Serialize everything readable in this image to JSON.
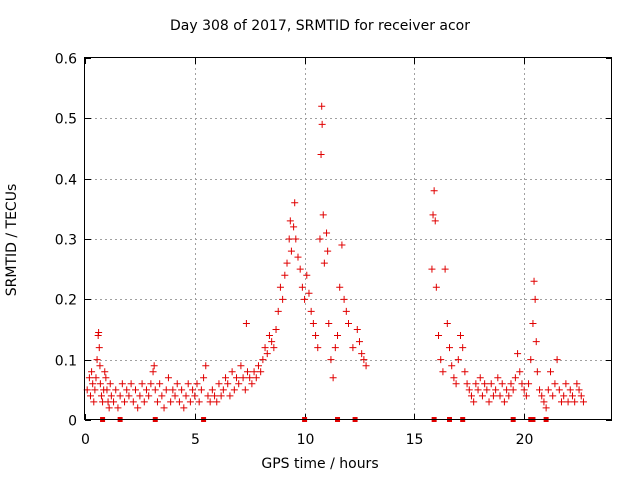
{
  "chart_data": {
    "type": "scatter",
    "title": "Day 308 of 2017, SRMTID for receiver acor",
    "xlabel": "GPS time / hours",
    "ylabel": "SRMTID / TECUs",
    "xlim": [
      0,
      24
    ],
    "ylim": [
      0,
      0.6
    ],
    "xticks": [
      0,
      5,
      10,
      15,
      20
    ],
    "yticks": [
      0,
      0.1,
      0.2,
      0.3,
      0.4,
      0.5,
      0.6
    ],
    "xtick_labels": [
      "0",
      "5",
      "10",
      "15",
      "20"
    ],
    "ytick_labels": [
      "0",
      "0.1",
      "0.2",
      "0.3",
      "0.4",
      "0.5",
      "0.6"
    ],
    "grid": true,
    "marker": "+",
    "color": "#e00000",
    "gap_markers_x": [
      0.8,
      1.6,
      3.2,
      5.4,
      10.0,
      11.5,
      12.3,
      15.9,
      16.6,
      17.2,
      19.5,
      20.3,
      20.4,
      21.0
    ],
    "series": [
      {
        "name": "SRMTID",
        "points": [
          [
            0.1,
            0.05
          ],
          [
            0.2,
            0.07
          ],
          [
            0.25,
            0.04
          ],
          [
            0.3,
            0.08
          ],
          [
            0.35,
            0.06
          ],
          [
            0.4,
            0.03
          ],
          [
            0.45,
            0.05
          ],
          [
            0.5,
            0.07
          ],
          [
            0.55,
            0.1
          ],
          [
            0.6,
            0.14
          ],
          [
            0.62,
            0.145
          ],
          [
            0.65,
            0.12
          ],
          [
            0.68,
            0.09
          ],
          [
            0.7,
            0.06
          ],
          [
            0.75,
            0.04
          ],
          [
            0.8,
            0.03
          ],
          [
            0.85,
            0.05
          ],
          [
            0.9,
            0.08
          ],
          [
            0.95,
            0.07
          ],
          [
            1.0,
            0.05
          ],
          [
            1.05,
            0.03
          ],
          [
            1.1,
            0.02
          ],
          [
            1.15,
            0.06
          ],
          [
            1.2,
            0.04
          ],
          [
            1.3,
            0.03
          ],
          [
            1.4,
            0.05
          ],
          [
            1.5,
            0.02
          ],
          [
            1.6,
            0.04
          ],
          [
            1.7,
            0.06
          ],
          [
            1.8,
            0.03
          ],
          [
            1.9,
            0.05
          ],
          [
            2.0,
            0.04
          ],
          [
            2.1,
            0.06
          ],
          [
            2.2,
            0.03
          ],
          [
            2.3,
            0.05
          ],
          [
            2.4,
            0.02
          ],
          [
            2.5,
            0.04
          ],
          [
            2.6,
            0.06
          ],
          [
            2.7,
            0.03
          ],
          [
            2.8,
            0.05
          ],
          [
            2.9,
            0.04
          ],
          [
            3.0,
            0.06
          ],
          [
            3.1,
            0.08
          ],
          [
            3.15,
            0.09
          ],
          [
            3.2,
            0.05
          ],
          [
            3.3,
            0.03
          ],
          [
            3.4,
            0.06
          ],
          [
            3.5,
            0.04
          ],
          [
            3.6,
            0.02
          ],
          [
            3.7,
            0.05
          ],
          [
            3.8,
            0.07
          ],
          [
            3.9,
            0.03
          ],
          [
            4.0,
            0.05
          ],
          [
            4.1,
            0.04
          ],
          [
            4.2,
            0.06
          ],
          [
            4.3,
            0.03
          ],
          [
            4.4,
            0.05
          ],
          [
            4.5,
            0.02
          ],
          [
            4.6,
            0.04
          ],
          [
            4.7,
            0.06
          ],
          [
            4.8,
            0.03
          ],
          [
            4.9,
            0.05
          ],
          [
            5.0,
            0.04
          ],
          [
            5.1,
            0.06
          ],
          [
            5.2,
            0.03
          ],
          [
            5.3,
            0.05
          ],
          [
            5.4,
            0.07
          ],
          [
            5.5,
            0.09
          ],
          [
            5.6,
            0.04
          ],
          [
            5.7,
            0.03
          ],
          [
            5.8,
            0.05
          ],
          [
            5.9,
            0.04
          ],
          [
            6.0,
            0.03
          ],
          [
            6.1,
            0.06
          ],
          [
            6.2,
            0.04
          ],
          [
            6.3,
            0.05
          ],
          [
            6.4,
            0.07
          ],
          [
            6.5,
            0.06
          ],
          [
            6.6,
            0.04
          ],
          [
            6.7,
            0.08
          ],
          [
            6.8,
            0.05
          ],
          [
            6.9,
            0.07
          ],
          [
            7.0,
            0.06
          ],
          [
            7.1,
            0.09
          ],
          [
            7.2,
            0.07
          ],
          [
            7.3,
            0.05
          ],
          [
            7.35,
            0.16
          ],
          [
            7.4,
            0.08
          ],
          [
            7.5,
            0.07
          ],
          [
            7.6,
            0.06
          ],
          [
            7.7,
            0.08
          ],
          [
            7.8,
            0.07
          ],
          [
            7.9,
            0.09
          ],
          [
            8.0,
            0.08
          ],
          [
            8.1,
            0.1
          ],
          [
            8.2,
            0.12
          ],
          [
            8.3,
            0.11
          ],
          [
            8.4,
            0.14
          ],
          [
            8.5,
            0.13
          ],
          [
            8.6,
            0.12
          ],
          [
            8.7,
            0.15
          ],
          [
            8.8,
            0.18
          ],
          [
            8.9,
            0.22
          ],
          [
            9.0,
            0.2
          ],
          [
            9.1,
            0.24
          ],
          [
            9.2,
            0.26
          ],
          [
            9.3,
            0.3
          ],
          [
            9.35,
            0.33
          ],
          [
            9.4,
            0.28
          ],
          [
            9.5,
            0.32
          ],
          [
            9.55,
            0.36
          ],
          [
            9.6,
            0.3
          ],
          [
            9.7,
            0.27
          ],
          [
            9.8,
            0.25
          ],
          [
            9.9,
            0.22
          ],
          [
            10.0,
            0.2
          ],
          [
            10.1,
            0.24
          ],
          [
            10.2,
            0.21
          ],
          [
            10.3,
            0.18
          ],
          [
            10.4,
            0.16
          ],
          [
            10.5,
            0.14
          ],
          [
            10.6,
            0.12
          ],
          [
            10.7,
            0.3
          ],
          [
            10.75,
            0.44
          ],
          [
            10.78,
            0.52
          ],
          [
            10.8,
            0.49
          ],
          [
            10.85,
            0.34
          ],
          [
            10.9,
            0.26
          ],
          [
            11.0,
            0.31
          ],
          [
            11.05,
            0.28
          ],
          [
            11.1,
            0.16
          ],
          [
            11.2,
            0.1
          ],
          [
            11.3,
            0.07
          ],
          [
            11.4,
            0.12
          ],
          [
            11.5,
            0.14
          ],
          [
            11.6,
            0.22
          ],
          [
            11.7,
            0.29
          ],
          [
            11.8,
            0.2
          ],
          [
            11.9,
            0.18
          ],
          [
            12.0,
            0.16
          ],
          [
            12.2,
            0.12
          ],
          [
            12.4,
            0.15
          ],
          [
            12.5,
            0.13
          ],
          [
            12.6,
            0.11
          ],
          [
            12.7,
            0.1
          ],
          [
            12.8,
            0.09
          ],
          [
            15.8,
            0.25
          ],
          [
            15.85,
            0.34
          ],
          [
            15.9,
            0.38
          ],
          [
            15.95,
            0.33
          ],
          [
            16.0,
            0.22
          ],
          [
            16.1,
            0.14
          ],
          [
            16.2,
            0.1
          ],
          [
            16.3,
            0.08
          ],
          [
            16.4,
            0.25
          ],
          [
            16.5,
            0.16
          ],
          [
            16.6,
            0.12
          ],
          [
            16.7,
            0.09
          ],
          [
            16.8,
            0.07
          ],
          [
            16.9,
            0.06
          ],
          [
            17.0,
            0.1
          ],
          [
            17.1,
            0.14
          ],
          [
            17.2,
            0.12
          ],
          [
            17.3,
            0.08
          ],
          [
            17.4,
            0.06
          ],
          [
            17.5,
            0.05
          ],
          [
            17.6,
            0.04
          ],
          [
            17.7,
            0.03
          ],
          [
            17.8,
            0.06
          ],
          [
            17.9,
            0.05
          ],
          [
            18.0,
            0.07
          ],
          [
            18.1,
            0.04
          ],
          [
            18.2,
            0.06
          ],
          [
            18.3,
            0.05
          ],
          [
            18.4,
            0.03
          ],
          [
            18.5,
            0.06
          ],
          [
            18.6,
            0.04
          ],
          [
            18.7,
            0.05
          ],
          [
            18.8,
            0.07
          ],
          [
            18.9,
            0.04
          ],
          [
            19.0,
            0.06
          ],
          [
            19.1,
            0.03
          ],
          [
            19.2,
            0.05
          ],
          [
            19.3,
            0.04
          ],
          [
            19.4,
            0.06
          ],
          [
            19.5,
            0.05
          ],
          [
            19.6,
            0.07
          ],
          [
            19.7,
            0.11
          ],
          [
            19.8,
            0.08
          ],
          [
            19.9,
            0.06
          ],
          [
            20.0,
            0.05
          ],
          [
            20.1,
            0.04
          ],
          [
            20.2,
            0.06
          ],
          [
            20.3,
            0.1
          ],
          [
            20.4,
            0.16
          ],
          [
            20.45,
            0.23
          ],
          [
            20.5,
            0.2
          ],
          [
            20.55,
            0.13
          ],
          [
            20.6,
            0.08
          ],
          [
            20.7,
            0.05
          ],
          [
            20.8,
            0.04
          ],
          [
            20.9,
            0.03
          ],
          [
            21.0,
            0.02
          ],
          [
            21.1,
            0.05
          ],
          [
            21.2,
            0.08
          ],
          [
            21.3,
            0.04
          ],
          [
            21.4,
            0.06
          ],
          [
            21.5,
            0.1
          ],
          [
            21.6,
            0.05
          ],
          [
            21.7,
            0.03
          ],
          [
            21.8,
            0.04
          ],
          [
            21.9,
            0.06
          ],
          [
            22.0,
            0.03
          ],
          [
            22.1,
            0.05
          ],
          [
            22.2,
            0.04
          ],
          [
            22.3,
            0.03
          ],
          [
            22.4,
            0.06
          ],
          [
            22.5,
            0.05
          ],
          [
            22.6,
            0.04
          ],
          [
            22.7,
            0.03
          ]
        ]
      }
    ]
  }
}
